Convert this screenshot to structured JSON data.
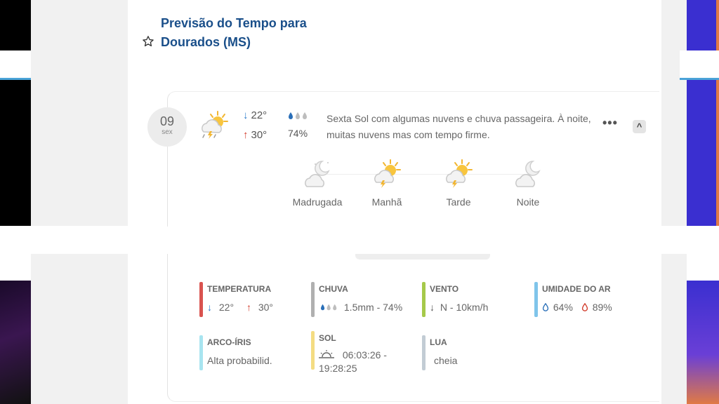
{
  "page": {
    "title_line1": "Previsão do Tempo para",
    "title_line2": "Dourados (MS)"
  },
  "day": {
    "date_number": "09",
    "weekday": "sex",
    "temp_min": "22°",
    "temp_max": "30°",
    "rain_probability": "74%",
    "description": "Sexta Sol com algumas nuvens e chuva passageira. À noite, muitas nuvens mas com tempo firme.",
    "more_label": "•••",
    "collapse_label": "^"
  },
  "periods": [
    {
      "label": "Madrugada",
      "icon": "moon-cloud-icon"
    },
    {
      "label": "Manhã",
      "icon": "sun-cloud-storm-icon"
    },
    {
      "label": "Tarde",
      "icon": "sun-cloud-storm-icon"
    },
    {
      "label": "Noite",
      "icon": "moon-cloud-icon"
    }
  ],
  "metrics": {
    "temperatura": {
      "label": "TEMPERATURA",
      "min": "22°",
      "max": "30°",
      "color": "#d9534f"
    },
    "chuva": {
      "label": "CHUVA",
      "value": "1.5mm - 74%",
      "color": "#b0b0b0"
    },
    "vento": {
      "label": "VENTO",
      "value": "N - 10km/h",
      "color": "#a6c94a"
    },
    "umidade": {
      "label": "UMIDADE DO AR",
      "min": "64%",
      "max": "89%",
      "color": "#7fc4ea"
    },
    "arco_iris": {
      "label": "ARCO-ÍRIS",
      "value": "Alta probabilid.",
      "color": "#a8e4f0"
    },
    "sol": {
      "label": "SOL",
      "value_line1": "06:03:26 -",
      "value_line2": "19:28:25",
      "color": "#f4dc82"
    },
    "lua": {
      "label": "LUA",
      "value": "cheia",
      "color": "#c2ccd4"
    }
  }
}
